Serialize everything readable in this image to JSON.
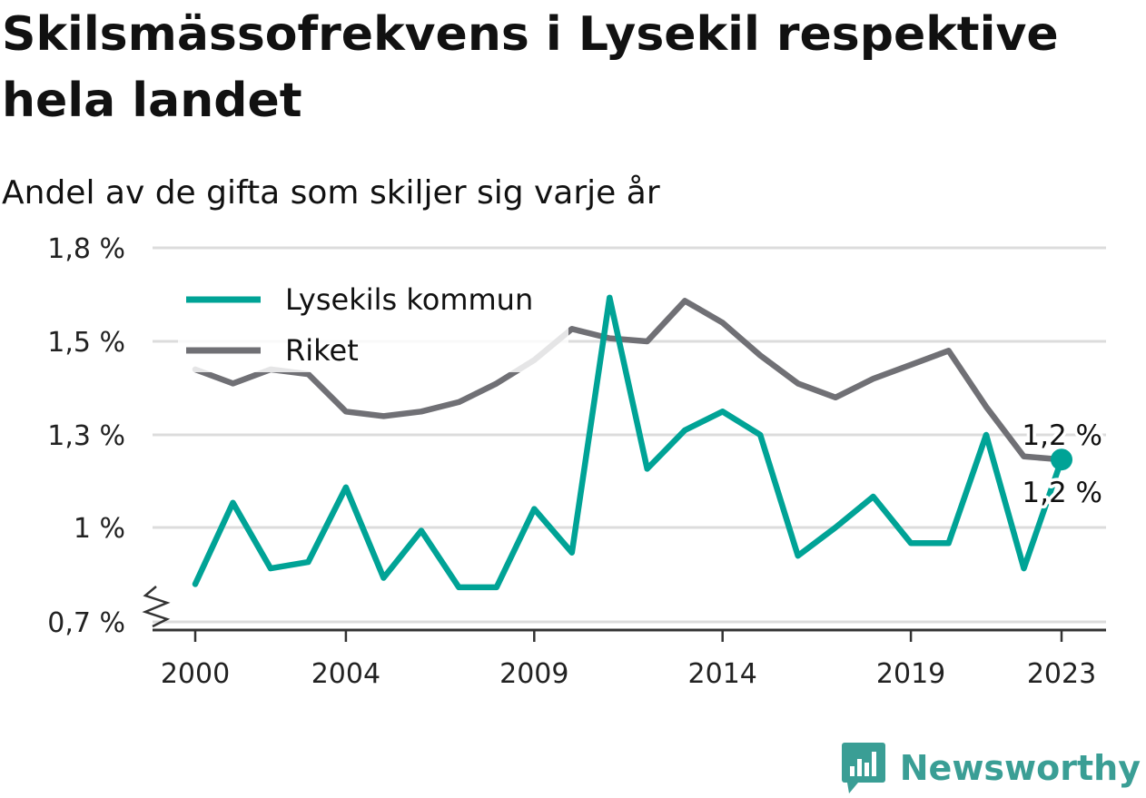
{
  "title": "Skilsmässofrekvens i Lysekil respektive hela landet",
  "subtitle": "Andel av de gifta som skiljer sig varje år",
  "brand": {
    "name": "Newsworthy",
    "icon": "newsworthy-logo-icon",
    "color": "#3a9e95"
  },
  "chart_data": {
    "type": "line",
    "title": "Skilsmässofrekvens i Lysekil respektive hela landet",
    "subtitle": "Andel av de gifta som skiljer sig varje år",
    "xlabel": "",
    "ylabel": "",
    "x": [
      2000,
      2001,
      2002,
      2003,
      2004,
      2005,
      2006,
      2007,
      2008,
      2009,
      2010,
      2011,
      2012,
      2013,
      2014,
      2015,
      2016,
      2017,
      2018,
      2019,
      2020,
      2021,
      2022,
      2023
    ],
    "x_ticks": [
      2000,
      2004,
      2009,
      2014,
      2019,
      2023
    ],
    "x_tick_labels": [
      "2000",
      "2004",
      "2009",
      "2014",
      "2019",
      "2023"
    ],
    "ylim": [
      0.7,
      1.8
    ],
    "y_ticks": [
      0.7,
      1.0,
      1.3,
      1.5,
      1.8
    ],
    "y_tick_labels": [
      "0,7 %",
      "1 %",
      "1,3 %",
      "1,5 %",
      "1,8 %"
    ],
    "y_axis_break": true,
    "grid": "horizontal",
    "legend_position": "top-left",
    "series": [
      {
        "name": "Lysekils kommun",
        "color": "#00a396",
        "values": [
          0.82,
          1.08,
          0.87,
          0.89,
          1.13,
          0.84,
          0.99,
          0.81,
          0.81,
          1.06,
          0.92,
          1.64,
          1.19,
          1.31,
          1.35,
          1.3,
          0.91,
          1.0,
          1.1,
          0.95,
          0.95,
          1.3,
          0.87,
          1.22
        ],
        "end_label": "1,2 %"
      },
      {
        "name": "Riket",
        "color": "#707075",
        "values": [
          1.44,
          1.41,
          1.44,
          1.43,
          1.35,
          1.34,
          1.35,
          1.37,
          1.41,
          1.46,
          1.54,
          1.51,
          1.5,
          1.63,
          1.56,
          1.47,
          1.41,
          1.38,
          1.42,
          1.45,
          1.48,
          1.36,
          1.23,
          1.22
        ],
        "end_label": "1,2 %"
      }
    ]
  }
}
